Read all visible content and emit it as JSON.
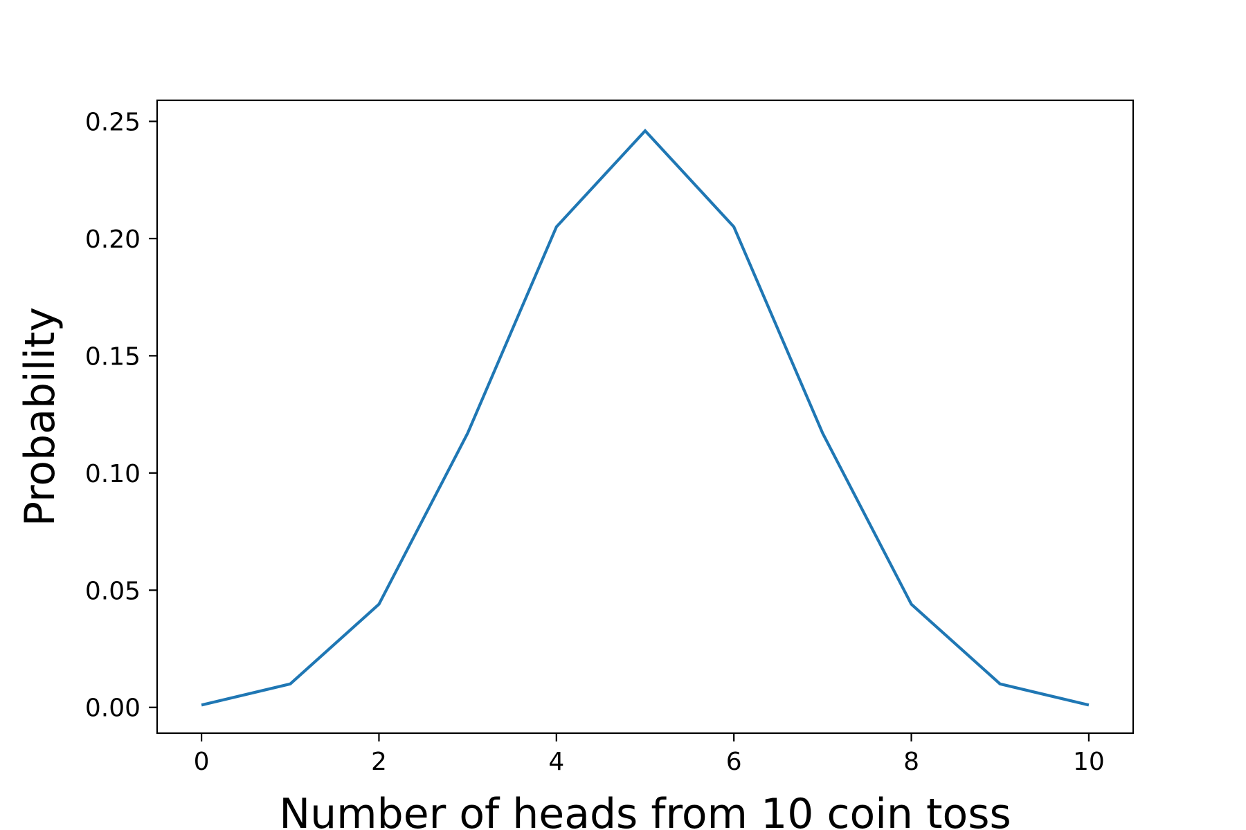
{
  "chart_data": {
    "type": "line",
    "title": "",
    "xlabel": "Number of heads from 10 coin toss",
    "ylabel": "Probability",
    "xlim": [
      -0.5,
      10.5
    ],
    "ylim": [
      -0.011,
      0.259
    ],
    "grid": false,
    "legend": "none",
    "x_ticks": [
      0,
      2,
      4,
      6,
      8,
      10
    ],
    "x_tick_labels": [
      "0",
      "2",
      "4",
      "6",
      "8",
      "10"
    ],
    "y_ticks": [
      0.0,
      0.05,
      0.1,
      0.15,
      0.2,
      0.25
    ],
    "y_tick_labels": [
      "0.00",
      "0.05",
      "0.10",
      "0.15",
      "0.20",
      "0.25"
    ],
    "series": [
      {
        "color": "#1f77b4",
        "x": [
          0,
          1,
          2,
          3,
          4,
          5,
          6,
          7,
          8,
          9,
          10
        ],
        "y": [
          0.001,
          0.01,
          0.044,
          0.117,
          0.205,
          0.246,
          0.205,
          0.117,
          0.044,
          0.01,
          0.001
        ]
      }
    ]
  }
}
